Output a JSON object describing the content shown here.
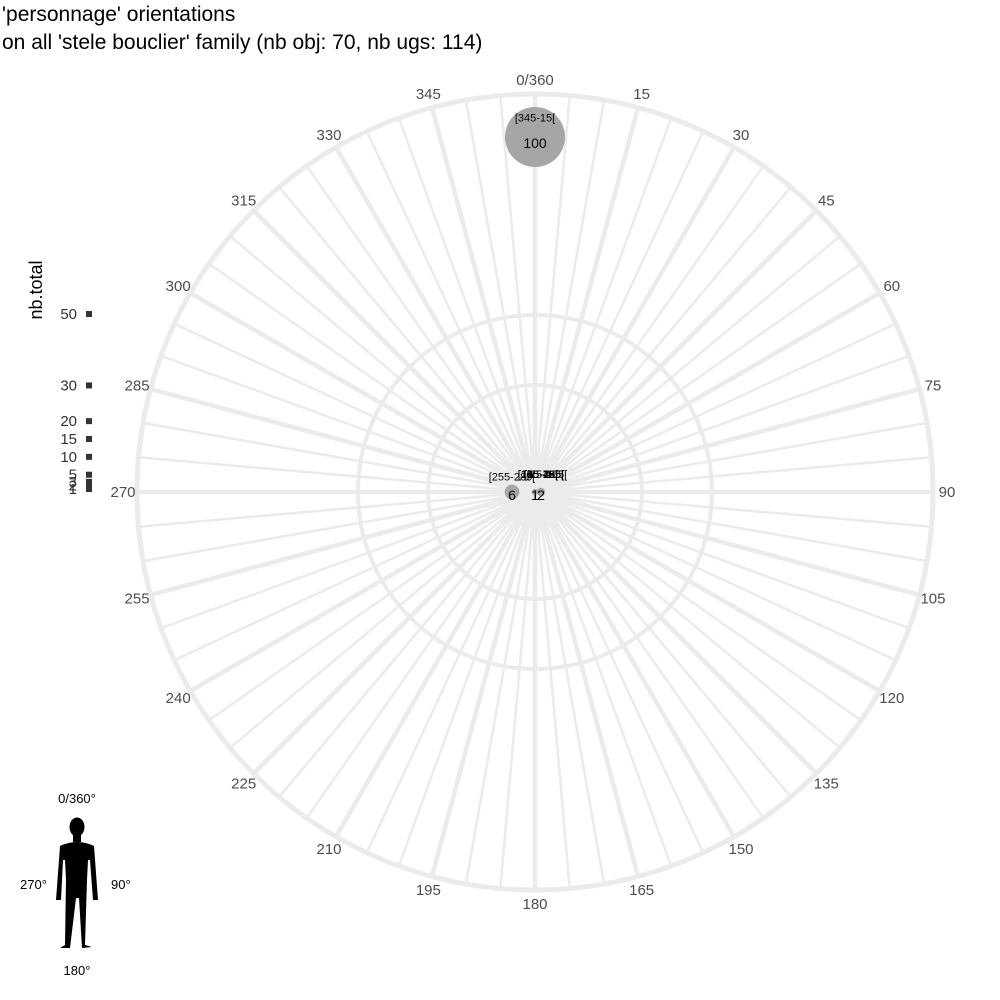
{
  "title_line1": "'personnage' orientations",
  "title_line2": "on all 'stele bouclier' family (nb obj: 70, nb ugs: 114)",
  "chart_data": {
    "type": "polar-bubble",
    "angular_axis": {
      "range": [
        0,
        360
      ],
      "direction": "clockwise",
      "zero": "top",
      "tick_labels": [
        "0/360",
        "15",
        "30",
        "45",
        "60",
        "75",
        "90",
        "105",
        "120",
        "135",
        "150",
        "165",
        "180",
        "195",
        "210",
        "225",
        "240",
        "255",
        "270",
        "285",
        "300",
        "315",
        "330",
        "345"
      ],
      "tick_values": [
        0,
        15,
        30,
        45,
        60,
        75,
        90,
        105,
        120,
        135,
        150,
        165,
        180,
        195,
        210,
        225,
        240,
        255,
        270,
        285,
        300,
        315,
        330,
        345
      ]
    },
    "size_legend": {
      "title": "nb.total",
      "ticks": [
        "50",
        "30",
        "20",
        "15",
        "10",
        "5",
        "3",
        "2",
        "1"
      ],
      "tick_values": [
        50,
        30,
        20,
        15,
        10,
        5,
        3,
        2,
        1
      ]
    },
    "points": [
      {
        "range": "[345-15[",
        "angle": 0,
        "count": 100,
        "label": "100"
      },
      {
        "range": "[255-285[",
        "angle": 270,
        "count": 6,
        "label": "6"
      },
      {
        "range": "[75-105[",
        "angle": 90,
        "count": 2,
        "label": "2"
      },
      {
        "range": "[15-45[",
        "angle": 30,
        "count": 1,
        "label": "1"
      },
      {
        "range": "[45-75[",
        "angle": 60,
        "count": 1,
        "label": "1"
      },
      {
        "range": "[105-135[",
        "angle": 120,
        "count": 1,
        "label": "1"
      },
      {
        "range": "[135-165[",
        "angle": 150,
        "count": 1,
        "label": "1"
      },
      {
        "range": "[165-195[",
        "angle": 180,
        "count": 1,
        "label": "1"
      },
      {
        "range": "[195-225[",
        "angle": 210,
        "count": 1,
        "label": "1"
      }
    ],
    "colors": {
      "bubble": "#a6a6a6",
      "grid": "#ebebeb",
      "tick_text": "#4d4d4d"
    }
  },
  "inset": {
    "top": "0/360°",
    "right": "90°",
    "bottom": "180°",
    "left": "270°",
    "icon": "human-silhouette-icon"
  }
}
